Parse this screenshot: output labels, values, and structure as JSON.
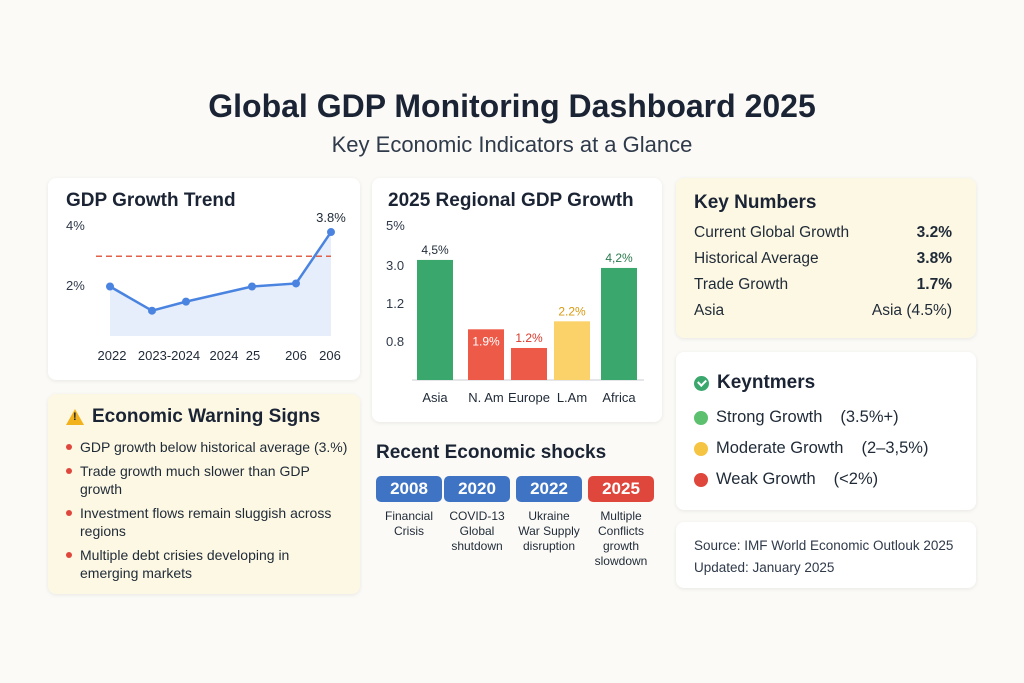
{
  "header": {
    "title": "Global GDP Monitoring Dashboard 2025",
    "subtitle": "Key Economic Indicators at a Glance"
  },
  "trend": {
    "heading": "GDP Growth Trend",
    "y_ticks": [
      "4%",
      "2%"
    ],
    "x_labels": [
      "2022",
      "2023-2024",
      "2024",
      "25",
      "206",
      "206"
    ],
    "last_label": "3.8%"
  },
  "regional": {
    "heading": "2025 Regional GDP Growth",
    "y_ticks": [
      "5%",
      "3.0",
      "1.2",
      "0.8"
    ]
  },
  "key_numbers": {
    "heading": "Key Numbers",
    "rows": [
      {
        "label": "Current Global Growth",
        "value": "3.2%"
      },
      {
        "label": "Historical Average",
        "value": "3.8%"
      },
      {
        "label": "Trade Growth",
        "value": "1.7%"
      },
      {
        "label": "Asia",
        "value": "Asia (4.5%)"
      }
    ]
  },
  "legend": {
    "heading": "Keyntmers",
    "items": [
      {
        "label": "Strong Growth",
        "range": "(3.5%+)",
        "color": "#5cc06f"
      },
      {
        "label": "Moderate Growth",
        "range": "(2–3,5%)",
        "color": "#f5c443"
      },
      {
        "label": "Weak Growth",
        "range": "(<2%)",
        "color": "#e0473c"
      }
    ]
  },
  "source": {
    "line1": "Source: IMF World Economic Outlouk 2025",
    "line2": "Updated: January 2025"
  },
  "warnings": {
    "heading": "Economic Warning Signs",
    "items": [
      "GDP growth below historical average (3.%)",
      "Trade growth much slower than GDP growth",
      "Investment flows remain sluggish across regions",
      "Multiple debt crisies developing in emerging markets"
    ]
  },
  "shocks": {
    "heading": "Recent Economic shocks",
    "items": [
      {
        "year": "2008",
        "desc": "Financial Crisis",
        "color": "#3f73c4"
      },
      {
        "year": "2020",
        "desc": "COVID-13 Global shutdown",
        "color": "#3f73c4"
      },
      {
        "year": "2022",
        "desc": "Ukraine War Supply disruption",
        "color": "#3f73c4"
      },
      {
        "year": "2025",
        "desc": "Multiple Conflicts growth slowdown",
        "color": "#e0473c"
      }
    ]
  },
  "chart_data": [
    {
      "type": "line",
      "title": "GDP Growth Trend",
      "categories": [
        "2022",
        "2023-2024",
        "2024",
        "25",
        "206",
        "206"
      ],
      "values": [
        2.0,
        1.2,
        1.5,
        2.0,
        2.1,
        3.8
      ],
      "reference_line": {
        "value": 3.0,
        "style": "dashed",
        "color": "#e0604a"
      },
      "ylim": [
        0,
        4
      ],
      "y_ticks": [
        "4%",
        "2%"
      ],
      "color": "#4a84e0",
      "annotations": [
        {
          "category_index": 5,
          "text": "3.8%"
        }
      ]
    },
    {
      "type": "bar",
      "title": "2025 Regional GDP Growth",
      "categories": [
        "Asia",
        "N. Am",
        "Europe",
        "L.Am",
        "Africa"
      ],
      "values": [
        4.5,
        1.9,
        1.2,
        2.2,
        4.2
      ],
      "data_labels": [
        "4,5%",
        "1.9%",
        "1.2%",
        "2.2%",
        "4,2%"
      ],
      "colors": [
        "#3aa76d",
        "#ee5a48",
        "#ee5a48",
        "#fbd26a",
        "#3aa76d"
      ],
      "y_ticks": [
        "5%",
        "3.0",
        "1.2",
        "0.8"
      ]
    }
  ]
}
